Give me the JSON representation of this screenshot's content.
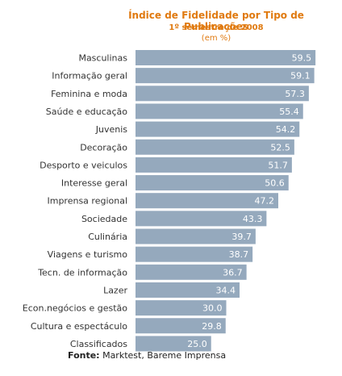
{
  "chart_data": {
    "type": "bar",
    "orientation": "horizontal",
    "title": "Índice de Fidelidade por Tipo de Publicações",
    "subtitle": "1º semestre de 2008",
    "unit_label": "(em %)",
    "categories": [
      "Masculinas",
      "Informação geral",
      "Feminina e moda",
      "Saúde e educação",
      "Juvenis",
      "Decoração",
      "Desporto e veiculos",
      "Interesse geral",
      "Imprensa regional",
      "Sociedade",
      "Culinária",
      "Viagens e turismo",
      "Tecn. de informação",
      "Lazer",
      "Econ.negócios e gestão",
      "Cultura e espectáculo",
      "Classificados"
    ],
    "values": [
      59.5,
      59.1,
      57.3,
      55.4,
      54.2,
      52.5,
      51.7,
      50.6,
      47.2,
      43.3,
      39.7,
      38.7,
      36.7,
      34.4,
      30.0,
      29.8,
      25.0
    ],
    "value_labels": [
      "59.5",
      "59.1",
      "57.3",
      "55.4",
      "54.2",
      "52.5",
      "51.7",
      "50.6",
      "47.2",
      "43.3",
      "39.7",
      "38.7",
      "36.7",
      "34.4",
      "30.0",
      "29.8",
      "25.0"
    ],
    "xlim": [
      0,
      60
    ],
    "grid": false,
    "legend": "none",
    "bar_color": "#95a9bd",
    "title_color": "#e07a10"
  },
  "source": {
    "label": "Fonte:",
    "text": " Marktest, Bareme Imprensa"
  }
}
